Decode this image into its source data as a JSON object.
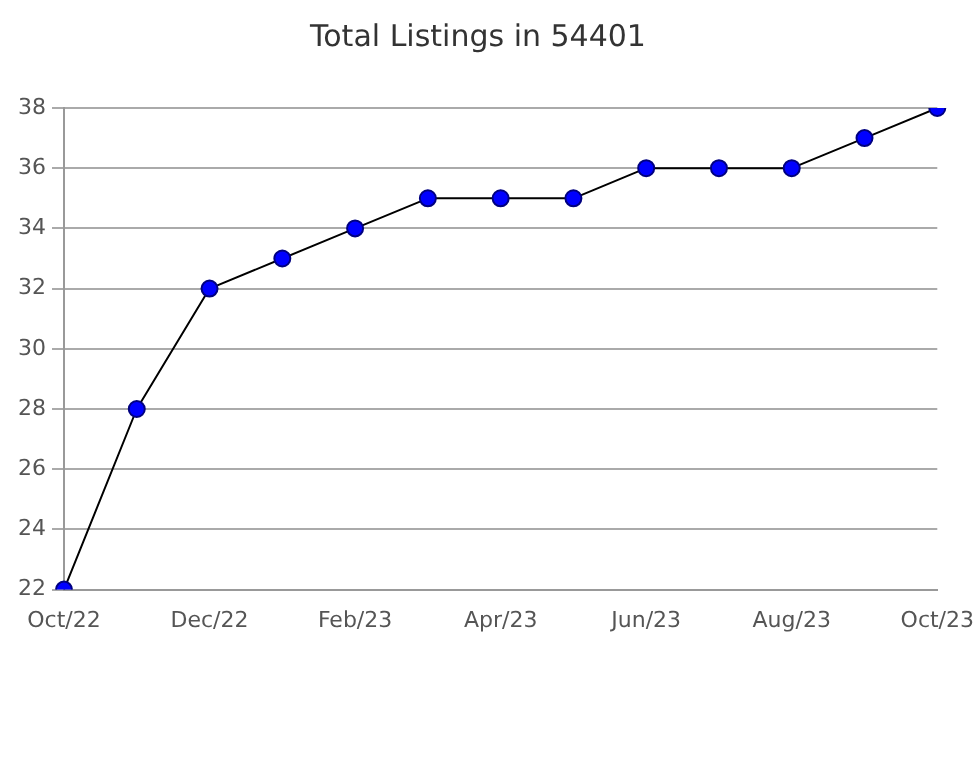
{
  "chart_data": {
    "type": "line",
    "title": "Total Listings in 54401",
    "categories": [
      "Oct/22",
      null,
      "Dec/22",
      null,
      "Feb/23",
      null,
      "Apr/23",
      null,
      "Jun/23",
      null,
      "Aug/23",
      null,
      "Oct/23"
    ],
    "series": [
      {
        "color": "#0000ff",
        "values": [
          22,
          28,
          32,
          33,
          34,
          35,
          35,
          35,
          36,
          36,
          36,
          37,
          38
        ]
      }
    ],
    "ylim": [
      22,
      38
    ],
    "yticks": [
      22,
      24,
      26,
      28,
      30,
      32,
      34,
      36,
      38
    ],
    "grid": "y",
    "legend": false,
    "marker": "circle",
    "line_style": "solid"
  }
}
